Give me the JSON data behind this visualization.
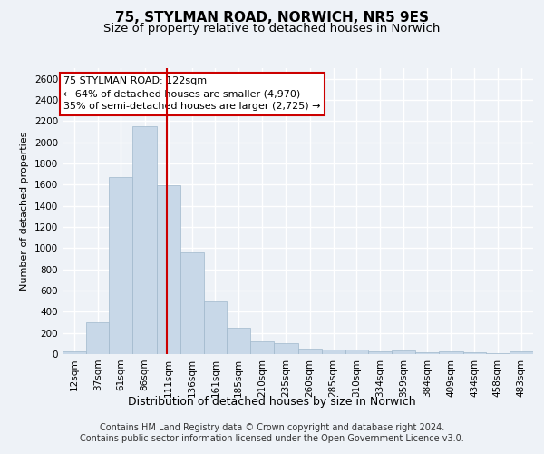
{
  "title": "75, STYLMAN ROAD, NORWICH, NR5 9ES",
  "subtitle": "Size of property relative to detached houses in Norwich",
  "xlabel": "Distribution of detached houses by size in Norwich",
  "ylabel": "Number of detached properties",
  "bar_color": "#c8d8e8",
  "bar_edgecolor": "#a0b8cc",
  "vline_x": 122,
  "vline_color": "#cc0000",
  "annotation_text": "75 STYLMAN ROAD: 122sqm\n← 64% of detached houses are smaller (4,970)\n35% of semi-detached houses are larger (2,725) →",
  "annotation_box_color": "#ffffff",
  "annotation_box_edgecolor": "#cc0000",
  "footer_text": "Contains HM Land Registry data © Crown copyright and database right 2024.\nContains public sector information licensed under the Open Government Licence v3.0.",
  "bin_edges": [
    12,
    37,
    61,
    86,
    111,
    136,
    161,
    185,
    210,
    235,
    260,
    285,
    310,
    334,
    359,
    384,
    409,
    434,
    458,
    483,
    508
  ],
  "bar_heights": [
    25,
    300,
    1670,
    2150,
    1595,
    960,
    500,
    250,
    120,
    100,
    50,
    45,
    40,
    25,
    35,
    20,
    25,
    20,
    10,
    25
  ],
  "ylim": [
    0,
    2700
  ],
  "yticks": [
    0,
    200,
    400,
    600,
    800,
    1000,
    1200,
    1400,
    1600,
    1800,
    2000,
    2200,
    2400,
    2600
  ],
  "bg_color": "#eef2f7",
  "grid_color": "#ffffff",
  "title_fontsize": 11,
  "subtitle_fontsize": 9.5,
  "tick_label_fontsize": 7.5,
  "ylabel_fontsize": 8,
  "xlabel_fontsize": 9,
  "annotation_fontsize": 8,
  "footer_fontsize": 7
}
